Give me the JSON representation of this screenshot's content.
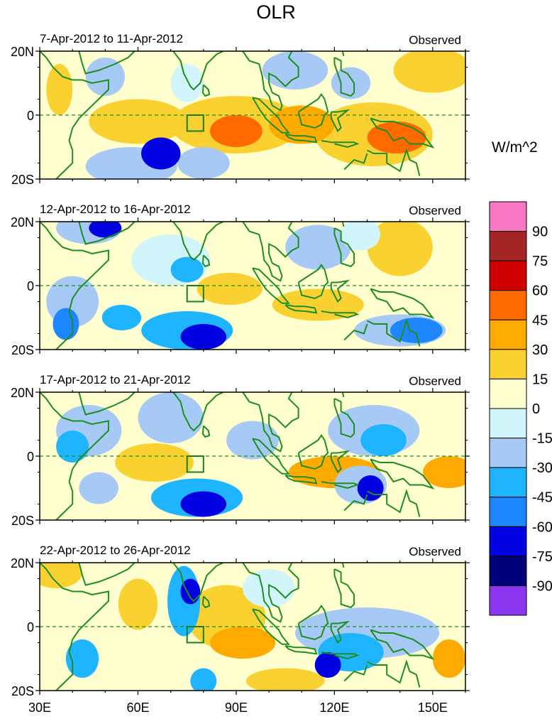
{
  "title": "OLR",
  "colorbar": {
    "unit": "W/m^2",
    "labels": [
      "90",
      "75",
      "60",
      "45",
      "30",
      "15",
      "0",
      "-15",
      "-30",
      "-45",
      "-60",
      "-75",
      "-90"
    ],
    "colors": [
      "#f978c4",
      "#a32624",
      "#d10000",
      "#ff6a00",
      "#ffaa00",
      "#f9d232",
      "#ffffd0",
      "#d2f5fb",
      "#a6caf5",
      "#1fb4ff",
      "#1e86ff",
      "#0000e0",
      "#00007a",
      "#8c35f0"
    ]
  },
  "map_colors": {
    "coast": "#1e8e1e",
    "box": "#197d19"
  },
  "axes": {
    "y_ticks": [
      "20N",
      "0",
      "20S"
    ],
    "x_ticks": [
      "30E",
      "60E",
      "90E",
      "120E",
      "150E"
    ]
  },
  "panels": [
    {
      "date_range": "7-Apr-2012 to 11-Apr-2012",
      "type_label": "Observed"
    },
    {
      "date_range": "12-Apr-2012 to 16-Apr-2012",
      "type_label": "Observed"
    },
    {
      "date_range": "17-Apr-2012 to 21-Apr-2012",
      "type_label": "Observed"
    },
    {
      "date_range": "22-Apr-2012 to 26-Apr-2012",
      "type_label": "Observed"
    }
  ],
  "anomalies": [
    [
      {
        "lon": 50,
        "lat": 12,
        "val": -20,
        "rx": 6,
        "ry": 6
      },
      {
        "lon": 36,
        "lat": 8,
        "val": 15,
        "rx": 4,
        "ry": 8
      },
      {
        "lon": 60,
        "lat": -2,
        "val": 15,
        "rx": 15,
        "ry": 7
      },
      {
        "lon": 67,
        "lat": -12,
        "val": -62,
        "rx": 6,
        "ry": 5
      },
      {
        "lon": 58,
        "lat": -16,
        "val": -20,
        "rx": 14,
        "ry": 6
      },
      {
        "lon": 90,
        "lat": -5,
        "val": 45,
        "rx": 8,
        "ry": 5
      },
      {
        "lon": 90,
        "lat": -3,
        "val": 20,
        "rx": 20,
        "ry": 9
      },
      {
        "lon": 110,
        "lat": -3,
        "val": 30,
        "rx": 10,
        "ry": 6
      },
      {
        "lon": 139,
        "lat": -7,
        "val": 50,
        "rx": 9,
        "ry": 5
      },
      {
        "lon": 132,
        "lat": -6,
        "val": 22,
        "rx": 18,
        "ry": 10
      },
      {
        "lon": 150,
        "lat": 14,
        "val": 25,
        "rx": 12,
        "ry": 7
      },
      {
        "lon": 108,
        "lat": 14,
        "val": -22,
        "rx": 10,
        "ry": 6
      },
      {
        "lon": 125,
        "lat": 10,
        "val": -28,
        "rx": 6,
        "ry": 5
      },
      {
        "lon": 80,
        "lat": -15,
        "val": -20,
        "rx": 8,
        "ry": 5
      },
      {
        "lon": 75,
        "lat": 10,
        "val": -10,
        "rx": 5,
        "ry": 6
      }
    ],
    [
      {
        "lon": 50,
        "lat": 18,
        "val": -75,
        "rx": 5,
        "ry": 3
      },
      {
        "lon": 45,
        "lat": 18,
        "val": -25,
        "rx": 10,
        "ry": 5
      },
      {
        "lon": 38,
        "lat": -12,
        "val": -60,
        "rx": 4,
        "ry": 5
      },
      {
        "lon": 40,
        "lat": -5,
        "val": -25,
        "rx": 8,
        "ry": 8
      },
      {
        "lon": 80,
        "lat": -16,
        "val": -68,
        "rx": 7,
        "ry": 4
      },
      {
        "lon": 75,
        "lat": -14,
        "val": -35,
        "rx": 14,
        "ry": 6
      },
      {
        "lon": 145,
        "lat": -14,
        "val": -55,
        "rx": 8,
        "ry": 4
      },
      {
        "lon": 140,
        "lat": -14,
        "val": -25,
        "rx": 14,
        "ry": 5
      },
      {
        "lon": 75,
        "lat": 5,
        "val": -40,
        "rx": 5,
        "ry": 4
      },
      {
        "lon": 70,
        "lat": 8,
        "val": -15,
        "rx": 12,
        "ry": 8
      },
      {
        "lon": 88,
        "lat": -1,
        "val": 22,
        "rx": 10,
        "ry": 5
      },
      {
        "lon": 115,
        "lat": -6,
        "val": 18,
        "rx": 14,
        "ry": 5
      },
      {
        "lon": 140,
        "lat": 12,
        "val": 22,
        "rx": 10,
        "ry": 9
      },
      {
        "lon": 115,
        "lat": 12,
        "val": -20,
        "rx": 10,
        "ry": 7
      },
      {
        "lon": 128,
        "lat": 16,
        "val": -15,
        "rx": 6,
        "ry": 5
      },
      {
        "lon": 55,
        "lat": -10,
        "val": -35,
        "rx": 6,
        "ry": 4
      }
    ],
    [
      {
        "lon": 40,
        "lat": 3,
        "val": -40,
        "rx": 5,
        "ry": 5
      },
      {
        "lon": 45,
        "lat": 8,
        "val": -20,
        "rx": 10,
        "ry": 8
      },
      {
        "lon": 80,
        "lat": -15,
        "val": -70,
        "rx": 7,
        "ry": 4
      },
      {
        "lon": 78,
        "lat": -13,
        "val": -35,
        "rx": 14,
        "ry": 6
      },
      {
        "lon": 131,
        "lat": -10,
        "val": -62,
        "rx": 4,
        "ry": 4
      },
      {
        "lon": 128,
        "lat": -9,
        "val": -30,
        "rx": 8,
        "ry": 6
      },
      {
        "lon": 135,
        "lat": 5,
        "val": -40,
        "rx": 7,
        "ry": 5
      },
      {
        "lon": 132,
        "lat": 8,
        "val": -20,
        "rx": 14,
        "ry": 8
      },
      {
        "lon": 70,
        "lat": 12,
        "val": -20,
        "rx": 10,
        "ry": 8
      },
      {
        "lon": 120,
        "lat": -5,
        "val": 30,
        "rx": 14,
        "ry": 5
      },
      {
        "lon": 155,
        "lat": -5,
        "val": 30,
        "rx": 8,
        "ry": 5
      },
      {
        "lon": 65,
        "lat": -2,
        "val": 18,
        "rx": 12,
        "ry": 6
      },
      {
        "lon": 95,
        "lat": 5,
        "val": -20,
        "rx": 8,
        "ry": 6
      },
      {
        "lon": 48,
        "lat": -10,
        "val": -30,
        "rx": 6,
        "ry": 5
      }
    ],
    [
      {
        "lon": 76,
        "lat": 11,
        "val": -70,
        "rx": 3,
        "ry": 4
      },
      {
        "lon": 74,
        "lat": 8,
        "val": -40,
        "rx": 5,
        "ry": 11
      },
      {
        "lon": 118,
        "lat": -12,
        "val": -62,
        "rx": 4,
        "ry": 4
      },
      {
        "lon": 125,
        "lat": -8,
        "val": -35,
        "rx": 10,
        "ry": 6
      },
      {
        "lon": 130,
        "lat": -2,
        "val": -20,
        "rx": 22,
        "ry": 8
      },
      {
        "lon": 92,
        "lat": -5,
        "val": 30,
        "rx": 10,
        "ry": 5
      },
      {
        "lon": 87,
        "lat": 3,
        "val": 20,
        "rx": 12,
        "ry": 10
      },
      {
        "lon": 155,
        "lat": -10,
        "val": 40,
        "rx": 5,
        "ry": 6
      },
      {
        "lon": 60,
        "lat": 7,
        "val": 18,
        "rx": 6,
        "ry": 8
      },
      {
        "lon": 43,
        "lat": -10,
        "val": -35,
        "rx": 5,
        "ry": 6
      },
      {
        "lon": 80,
        "lat": -17,
        "val": -40,
        "rx": 4,
        "ry": 4
      },
      {
        "lon": 105,
        "lat": -17,
        "val": 18,
        "rx": 12,
        "ry": 4
      },
      {
        "lon": 35,
        "lat": 17,
        "val": 18,
        "rx": 8,
        "ry": 5
      },
      {
        "lon": 100,
        "lat": 12,
        "val": -15,
        "rx": 8,
        "ry": 6
      }
    ]
  ]
}
